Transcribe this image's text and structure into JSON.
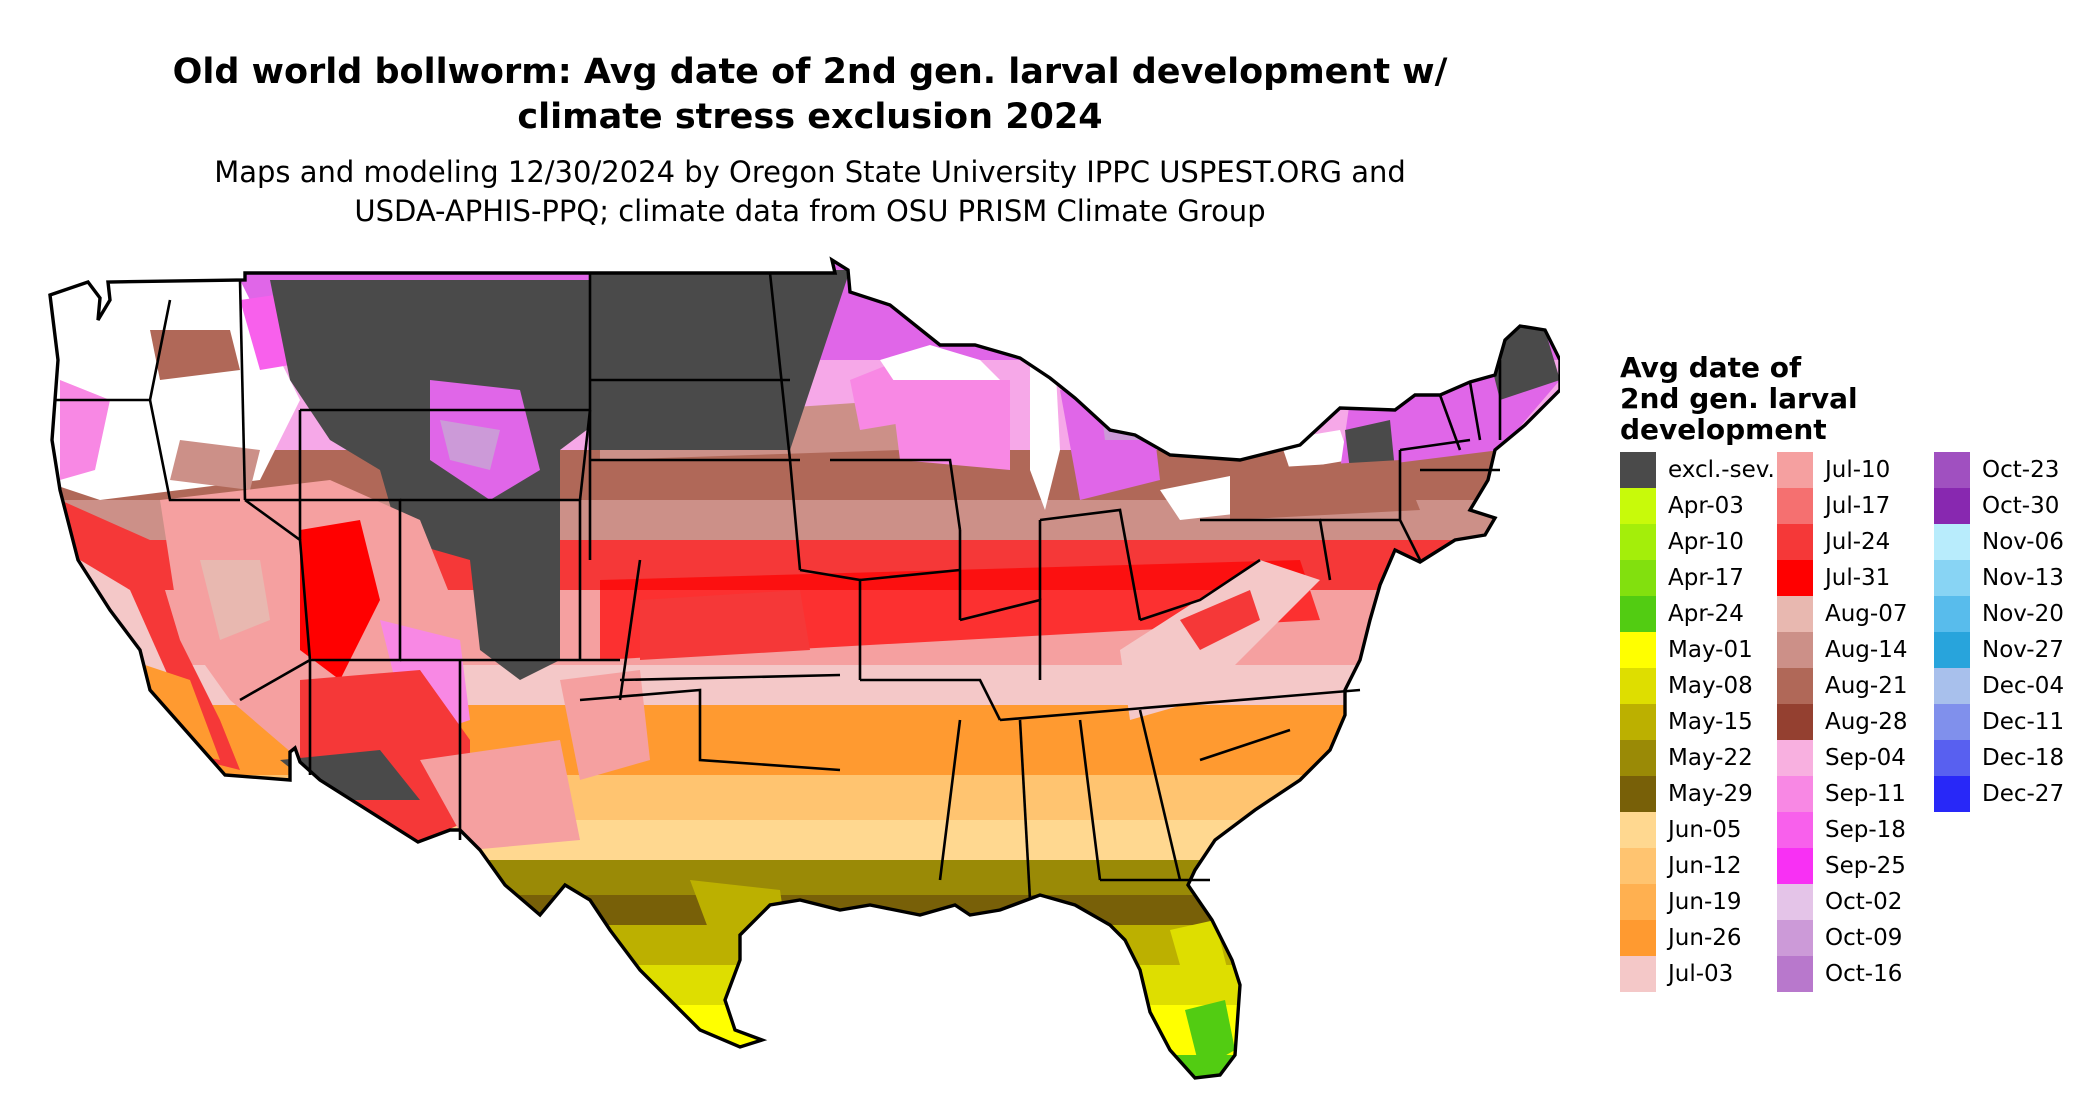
{
  "title_lines": [
    "Old world bollworm: Avg date of 2nd gen. larval development w/",
    "climate stress exclusion 2024"
  ],
  "subtitle_lines": [
    "Maps and modeling 12/30/2024 by Oregon State University IPPC USPEST.ORG and",
    "USDA-APHIS-PPQ; climate data from OSU PRISM Climate Group"
  ],
  "legend": {
    "title_lines": [
      "Avg date of",
      "2nd gen. larval",
      "development"
    ],
    "items": [
      {
        "label": "excl.-sev.",
        "color": "#4a4a4a"
      },
      {
        "label": "Apr-03",
        "color": "#c8fa0a"
      },
      {
        "label": "Apr-10",
        "color": "#a4ee0a"
      },
      {
        "label": "Apr-17",
        "color": "#82e00e"
      },
      {
        "label": "Apr-24",
        "color": "#52cc12"
      },
      {
        "label": "May-01",
        "color": "#ffff00"
      },
      {
        "label": "May-08",
        "color": "#dede00"
      },
      {
        "label": "May-15",
        "color": "#bcb000"
      },
      {
        "label": "May-22",
        "color": "#9a8a06"
      },
      {
        "label": "May-29",
        "color": "#786008"
      },
      {
        "label": "Jun-05",
        "color": "#ffd890"
      },
      {
        "label": "Jun-12",
        "color": "#ffc470"
      },
      {
        "label": "Jun-19",
        "color": "#ffb050"
      },
      {
        "label": "Jun-26",
        "color": "#ff9a30"
      },
      {
        "label": "Jul-03",
        "color": "#f4c8c8"
      },
      {
        "label": "Jul-10",
        "color": "#f5a0a0"
      },
      {
        "label": "Jul-17",
        "color": "#f57070"
      },
      {
        "label": "Jul-24",
        "color": "#f53838"
      },
      {
        "label": "Jul-31",
        "color": "#ff0000"
      },
      {
        "label": "Aug-07",
        "color": "#e8b8b0"
      },
      {
        "label": "Aug-14",
        "color": "#cc9088"
      },
      {
        "label": "Aug-21",
        "color": "#b06858"
      },
      {
        "label": "Aug-28",
        "color": "#944030"
      },
      {
        "label": "Sep-04",
        "color": "#f8b0e0"
      },
      {
        "label": "Sep-11",
        "color": "#f888e4"
      },
      {
        "label": "Sep-18",
        "color": "#f860ec"
      },
      {
        "label": "Sep-25",
        "color": "#f830f4"
      },
      {
        "label": "Oct-02",
        "color": "#e4c4e8"
      },
      {
        "label": "Oct-09",
        "color": "#cc9ad8"
      },
      {
        "label": "Oct-16",
        "color": "#b878cc"
      },
      {
        "label": "Oct-23",
        "color": "#a050c0"
      },
      {
        "label": "Oct-30",
        "color": "#8828b0"
      },
      {
        "label": "Nov-06",
        "color": "#b8ecfc"
      },
      {
        "label": "Nov-13",
        "color": "#88d4f4"
      },
      {
        "label": "Nov-20",
        "color": "#58bcec"
      },
      {
        "label": "Nov-27",
        "color": "#28a4dc"
      },
      {
        "label": "Dec-04",
        "color": "#a8c0ec"
      },
      {
        "label": "Dec-11",
        "color": "#8090ec"
      },
      {
        "label": "Dec-18",
        "color": "#5860f0"
      },
      {
        "label": "Dec-27",
        "color": "#2828f8"
      }
    ]
  }
}
